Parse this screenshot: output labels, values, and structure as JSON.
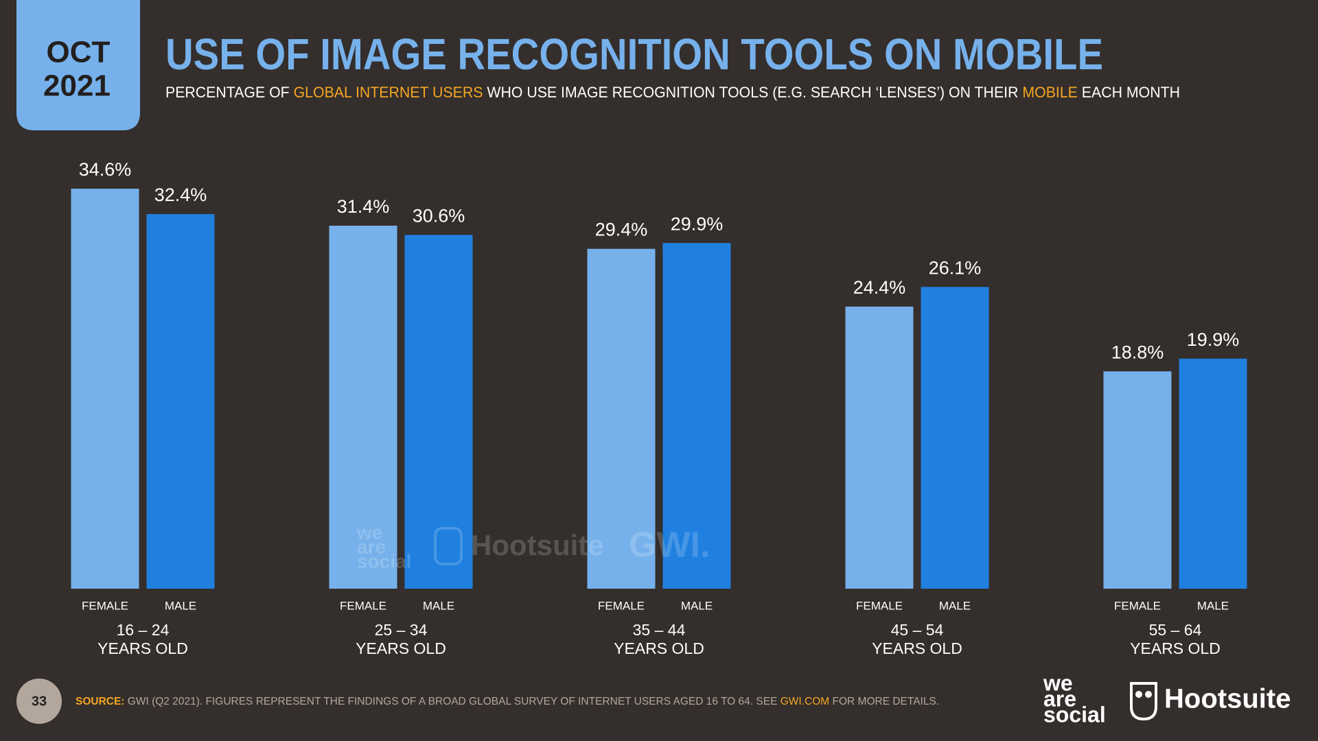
{
  "header": {
    "month": "OCT",
    "year": "2021",
    "title": "USE OF IMAGE RECOGNITION TOOLS ON MOBILE",
    "subtitle": [
      "PERCENTAGE OF ",
      "GLOBAL INTERNET USERS",
      " WHO USE IMAGE RECOGNITION TOOLS (E.G. SEARCH ‘LENSES’) ON THEIR ",
      "MOBILE",
      " EACH MONTH"
    ]
  },
  "chart_data": {
    "type": "bar",
    "categories": [
      "16 – 24",
      "25 – 34",
      "35 – 44",
      "45 – 54",
      "55 – 64"
    ],
    "category_suffix": "YEARS OLD",
    "series": [
      {
        "name": "FEMALE",
        "color": "#76b1eb",
        "values": [
          34.6,
          31.4,
          29.4,
          24.4,
          18.8
        ],
        "value_labels": [
          "34.6%",
          "31.4%",
          "29.4%",
          "24.4%",
          "18.8%"
        ]
      },
      {
        "name": "MALE",
        "color": "#1f80e0",
        "values": [
          32.4,
          30.6,
          29.9,
          26.1,
          19.9
        ],
        "value_labels": [
          "32.4%",
          "30.6%",
          "29.9%",
          "26.1%",
          "19.9%"
        ]
      }
    ]
  },
  "watermark": [
    "we",
    "are",
    "social",
    "Hootsuite",
    "GWI."
  ],
  "footer": {
    "page": "33",
    "source": [
      "SOURCE:",
      " GWI (Q2 2021). FIGURES REPRESENT THE FINDINGS OF A BROAD GLOBAL SURVEY OF INTERNET USERS AGED 16 TO 64. SEE ",
      "GWI.COM",
      " FOR MORE DETAILS."
    ],
    "logos": [
      "we",
      "are",
      "social",
      "Hootsuite"
    ]
  }
}
